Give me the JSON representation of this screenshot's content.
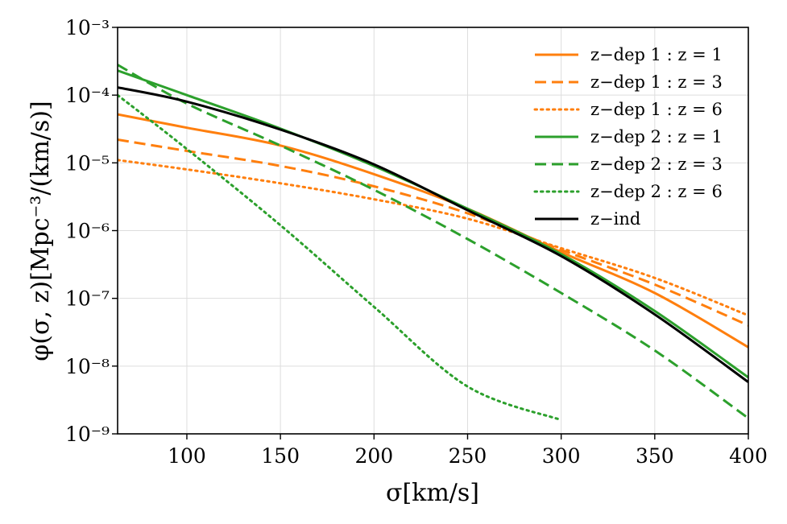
{
  "chart_data": {
    "type": "line",
    "xlabel": "σ[km/s]",
    "ylabel": "φ(σ, z)[Mpc⁻³/(km/s)]",
    "xlim": [
      63,
      400
    ],
    "ylim_log10": [
      -9,
      -3
    ],
    "yscale": "log",
    "grid": true,
    "legend_position": "top-right",
    "x_ticks": [
      100,
      150,
      200,
      250,
      300,
      350,
      400
    ],
    "x_tick_labels": [
      "100",
      "150",
      "200",
      "250",
      "300",
      "350",
      "400"
    ],
    "y_ticks_log10": [
      -3,
      -4,
      -5,
      -6,
      -7,
      -8,
      -9
    ],
    "y_tick_labels": [
      "10⁻³",
      "10⁻⁴",
      "10⁻⁵",
      "10⁻⁶",
      "10⁻⁷",
      "10⁻⁸",
      "10⁻⁹"
    ],
    "x": [
      63,
      100,
      150,
      200,
      250,
      300,
      350,
      400
    ],
    "series": [
      {
        "name": "z−dep 1 : z = 1",
        "color": "#ff7f0e",
        "linestyle": "solid",
        "values": [
          5.2e-05,
          3.3e-05,
          1.8e-05,
          6.8e-06,
          2.1e-06,
          4.8e-07,
          1.2e-07,
          1.9e-08
        ]
      },
      {
        "name": "z−dep 1 : z = 3",
        "color": "#ff7f0e",
        "linestyle": "dashed",
        "values": [
          2.2e-05,
          1.5e-05,
          9e-06,
          4.5e-06,
          1.8e-06,
          5.2e-07,
          1.6e-07,
          4e-08
        ]
      },
      {
        "name": "z−dep 1 : z = 6",
        "color": "#ff7f0e",
        "linestyle": "dotted",
        "values": [
          1.1e-05,
          8e-06,
          5e-06,
          2.9e-06,
          1.5e-06,
          5.5e-07,
          2e-07,
          5.6e-08
        ]
      },
      {
        "name": "z−dep 2 : z = 1",
        "color": "#2ca02c",
        "linestyle": "solid",
        "values": [
          0.00023,
          0.0001,
          3.2e-05,
          9e-06,
          2.1e-06,
          4.5e-07,
          6.5e-08,
          6.8e-09
        ]
      },
      {
        "name": "z−dep 2 : z = 3",
        "color": "#2ca02c",
        "linestyle": "dashed",
        "values": [
          0.00028,
          7.5e-05,
          1.8e-05,
          4e-06,
          7.5e-07,
          1.2e-07,
          1.7e-08,
          1.7e-09
        ]
      },
      {
        "name": "z−dep 2 : z = 6",
        "color": "#2ca02c",
        "linestyle": "dotted",
        "values": [
          0.0001,
          1.6e-05,
          1.2e-06,
          7.5e-08,
          5e-09,
          1.6e-09,
          null,
          null
        ]
      },
      {
        "name": "z−ind",
        "color": "#000000",
        "linestyle": "solid",
        "values": [
          0.00013,
          8e-05,
          3.1e-05,
          9.5e-06,
          2e-06,
          4.2e-07,
          5.8e-08,
          5.8e-09
        ]
      }
    ]
  }
}
